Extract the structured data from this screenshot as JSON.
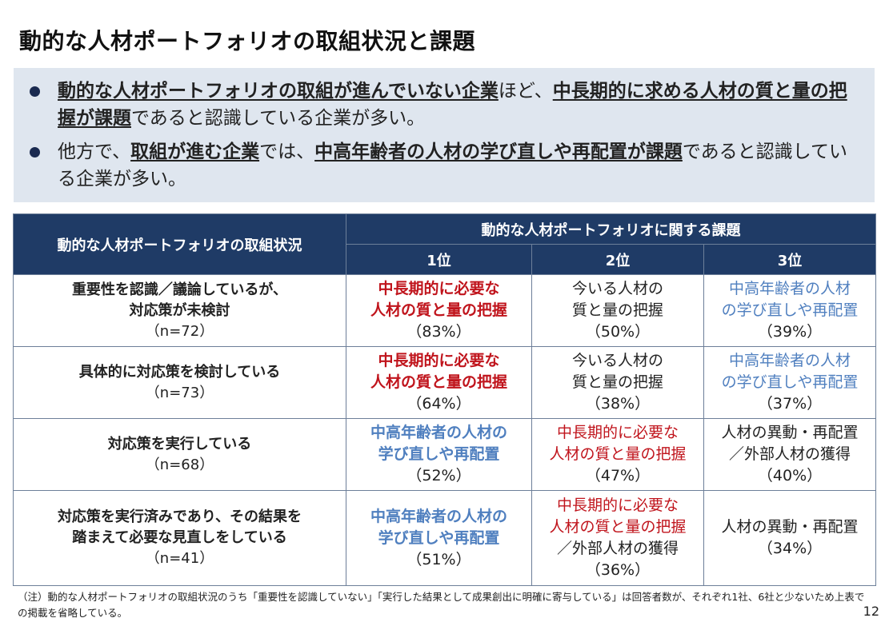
{
  "title": "動的な人材ポートフォリオの取組状況と課題",
  "bullets": [
    {
      "parts": [
        {
          "text": "動的な人材ポートフォリオの取組が進んでいない企業",
          "em": true
        },
        {
          "text": "ほど、",
          "em": false
        },
        {
          "text": "中長期的に求める人材の質と量の把握が課題",
          "em": true
        },
        {
          "text": "であると認識している企業が多い。",
          "em": false
        }
      ]
    },
    {
      "parts": [
        {
          "text": "他方で、",
          "em": false
        },
        {
          "text": "取組が進む企業",
          "em": true
        },
        {
          "text": "では、",
          "em": false
        },
        {
          "text": "中高年齢者の人材の学び直しや再配置が課題",
          "em": true
        },
        {
          "text": "であると認識している企業が多い。",
          "em": false
        }
      ]
    }
  ],
  "table": {
    "header_status": "動的な人材ポートフォリオの取組状況",
    "header_issues": "動的な人材ポートフォリオに関する課題",
    "rank_headers": [
      "1位",
      "2位",
      "3位"
    ],
    "rows": [
      {
        "status_lines": [
          "重要性を認識／議論しているが、",
          "対応策が未検討"
        ],
        "n": "（n=72）",
        "cells": [
          {
            "lines": [
              "中長期的に必要な",
              "人材の質と量の把握"
            ],
            "pct": "（83%）",
            "color": "red",
            "bold": true
          },
          {
            "lines": [
              "今いる人材の",
              "質と量の把握"
            ],
            "pct": "（50%）",
            "color": "dark",
            "bold": false
          },
          {
            "lines": [
              "中高年齢者の人材",
              "の学び直しや再配置"
            ],
            "pct": "（39%）",
            "color": "blue",
            "bold": false
          }
        ]
      },
      {
        "status_lines": [
          "具体的に対応策を検討している"
        ],
        "n": "（n=73）",
        "cells": [
          {
            "lines": [
              "中長期的に必要な",
              "人材の質と量の把握"
            ],
            "pct": "（64%）",
            "color": "red",
            "bold": true
          },
          {
            "lines": [
              "今いる人材の",
              "質と量の把握"
            ],
            "pct": "（38%）",
            "color": "dark",
            "bold": false
          },
          {
            "lines": [
              "中高年齢者の人材",
              "の学び直しや再配置"
            ],
            "pct": "（37%）",
            "color": "blue",
            "bold": false
          }
        ]
      },
      {
        "status_lines": [
          "対応策を実行している"
        ],
        "n": "（n=68）",
        "cells": [
          {
            "lines": [
              "中高年齢者の人材の",
              "学び直しや再配置"
            ],
            "pct": "（52%）",
            "color": "blue",
            "bold": true
          },
          {
            "lines": [
              "中長期的に必要な",
              "人材の質と量の把握"
            ],
            "pct": "（47%）",
            "color": "red",
            "bold": false
          },
          {
            "lines": [
              "人材の異動・再配置",
              "／外部人材の獲得"
            ],
            "pct": "（40%）",
            "color": "dark",
            "bold": false
          }
        ]
      },
      {
        "status_lines": [
          "対応策を実行済みであり、その結果を",
          "踏まえて必要な見直しをしている"
        ],
        "n": "（n=41）",
        "cells": [
          {
            "lines": [
              "中高年齢者の人材の",
              "学び直しや再配置"
            ],
            "pct": "（51%）",
            "color": "blue",
            "bold": true
          },
          {
            "lines": [
              "中長期的に必要な",
              "人材の質と量の把握"
            ],
            "extra": "／外部人材の獲得",
            "pct": "（36%）",
            "color": "red",
            "bold": false
          },
          {
            "lines": [
              "人材の異動・再配置"
            ],
            "pct": "（34%）",
            "color": "dark",
            "bold": false
          }
        ]
      }
    ]
  },
  "note": "（注）動的な人材ポートフォリオの取組状況のうち「重要性を認識していない」「実行した結果として成果創出に明確に寄与している」は回答者数が、それぞれ1社、6社と少ないため上表での掲載を省略している。",
  "page_number": "12"
}
